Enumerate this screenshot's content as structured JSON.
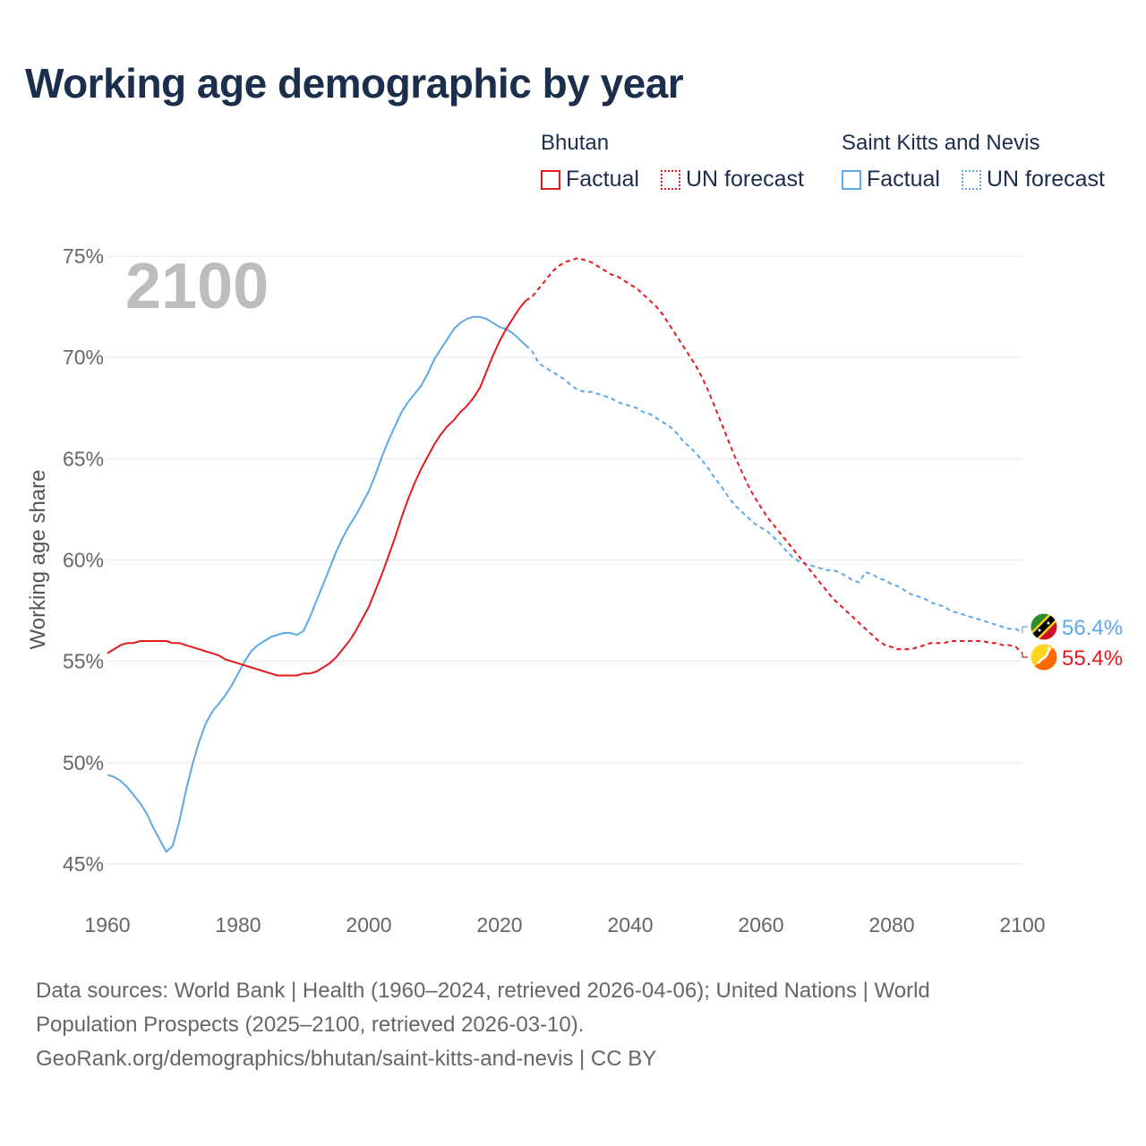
{
  "title": "Working age demographic by year",
  "legend": {
    "groups": [
      {
        "country": "Bhutan",
        "color": "#e31a1c",
        "factual_label": "Factual",
        "forecast_label": "UN forecast"
      },
      {
        "country": "Saint Kitts and Nevis",
        "color": "#5ea8e8",
        "factual_label": "Factual",
        "forecast_label": "UN forecast"
      }
    ]
  },
  "year_watermark": "2100",
  "footer": {
    "line1": "Data sources: World Bank | Health (1960–2024, retrieved 2026-04-06); United Nations | World",
    "line2": "Population Prospects (2025–2100, retrieved 2026-03-10).",
    "line3": "GeoRank.org/demographics/bhutan/saint-kitts-and-nevis | CC BY"
  },
  "chart_data": {
    "type": "line",
    "title": "Working age demographic by year",
    "xlabel": "",
    "ylabel": "Working age share",
    "xlim": [
      1960,
      2100
    ],
    "ylim": [
      45,
      75
    ],
    "x_ticks": [
      1960,
      1980,
      2000,
      2020,
      2040,
      2060,
      2080,
      2100
    ],
    "y_ticks": [
      45,
      50,
      55,
      60,
      65,
      70,
      75
    ],
    "y_tick_labels": [
      "45%",
      "50%",
      "55%",
      "60%",
      "65%",
      "70%",
      "75%"
    ],
    "grid": true,
    "factual_until": 2024,
    "series": [
      {
        "name": "Bhutan",
        "color": "#e31a1c",
        "end_label": "55.4%",
        "flag": "bhutan",
        "points": [
          [
            1960,
            55.4
          ],
          [
            1961,
            55.6
          ],
          [
            1962,
            55.8
          ],
          [
            1963,
            55.9
          ],
          [
            1964,
            55.9
          ],
          [
            1965,
            56.0
          ],
          [
            1966,
            56.0
          ],
          [
            1967,
            56.0
          ],
          [
            1968,
            56.0
          ],
          [
            1969,
            56.0
          ],
          [
            1970,
            55.9
          ],
          [
            1971,
            55.9
          ],
          [
            1972,
            55.8
          ],
          [
            1973,
            55.7
          ],
          [
            1974,
            55.6
          ],
          [
            1975,
            55.5
          ],
          [
            1976,
            55.4
          ],
          [
            1977,
            55.3
          ],
          [
            1978,
            55.1
          ],
          [
            1979,
            55.0
          ],
          [
            1980,
            54.9
          ],
          [
            1981,
            54.8
          ],
          [
            1982,
            54.7
          ],
          [
            1983,
            54.6
          ],
          [
            1984,
            54.5
          ],
          [
            1985,
            54.4
          ],
          [
            1986,
            54.3
          ],
          [
            1987,
            54.3
          ],
          [
            1988,
            54.3
          ],
          [
            1989,
            54.3
          ],
          [
            1990,
            54.4
          ],
          [
            1991,
            54.4
          ],
          [
            1992,
            54.5
          ],
          [
            1993,
            54.7
          ],
          [
            1994,
            54.9
          ],
          [
            1995,
            55.2
          ],
          [
            1996,
            55.6
          ],
          [
            1997,
            56.0
          ],
          [
            1998,
            56.5
          ],
          [
            1999,
            57.1
          ],
          [
            2000,
            57.7
          ],
          [
            2001,
            58.5
          ],
          [
            2002,
            59.3
          ],
          [
            2003,
            60.2
          ],
          [
            2004,
            61.1
          ],
          [
            2005,
            62.1
          ],
          [
            2006,
            63.0
          ],
          [
            2007,
            63.8
          ],
          [
            2008,
            64.5
          ],
          [
            2009,
            65.1
          ],
          [
            2010,
            65.7
          ],
          [
            2011,
            66.2
          ],
          [
            2012,
            66.6
          ],
          [
            2013,
            66.9
          ],
          [
            2014,
            67.3
          ],
          [
            2015,
            67.6
          ],
          [
            2016,
            68.0
          ],
          [
            2017,
            68.5
          ],
          [
            2018,
            69.3
          ],
          [
            2019,
            70.1
          ],
          [
            2020,
            70.8
          ],
          [
            2021,
            71.4
          ],
          [
            2022,
            71.9
          ],
          [
            2023,
            72.4
          ],
          [
            2024,
            72.8
          ],
          [
            2025,
            73.0
          ],
          [
            2026,
            73.4
          ],
          [
            2027,
            73.8
          ],
          [
            2028,
            74.2
          ],
          [
            2029,
            74.5
          ],
          [
            2030,
            74.7
          ],
          [
            2031,
            74.8
          ],
          [
            2032,
            74.9
          ],
          [
            2033,
            74.8
          ],
          [
            2034,
            74.7
          ],
          [
            2035,
            74.5
          ],
          [
            2036,
            74.3
          ],
          [
            2037,
            74.1
          ],
          [
            2038,
            74.0
          ],
          [
            2039,
            73.8
          ],
          [
            2040,
            73.6
          ],
          [
            2041,
            73.4
          ],
          [
            2042,
            73.1
          ],
          [
            2043,
            72.8
          ],
          [
            2044,
            72.5
          ],
          [
            2045,
            72.1
          ],
          [
            2046,
            71.6
          ],
          [
            2047,
            71.1
          ],
          [
            2048,
            70.6
          ],
          [
            2049,
            70.1
          ],
          [
            2050,
            69.6
          ],
          [
            2051,
            69.0
          ],
          [
            2052,
            68.3
          ],
          [
            2053,
            67.5
          ],
          [
            2054,
            66.7
          ],
          [
            2055,
            65.9
          ],
          [
            2056,
            65.1
          ],
          [
            2057,
            64.4
          ],
          [
            2058,
            63.7
          ],
          [
            2059,
            63.1
          ],
          [
            2060,
            62.6
          ],
          [
            2061,
            62.1
          ],
          [
            2062,
            61.7
          ],
          [
            2063,
            61.3
          ],
          [
            2064,
            60.9
          ],
          [
            2065,
            60.5
          ],
          [
            2066,
            60.1
          ],
          [
            2067,
            59.7
          ],
          [
            2068,
            59.3
          ],
          [
            2069,
            58.9
          ],
          [
            2070,
            58.5
          ],
          [
            2071,
            58.1
          ],
          [
            2072,
            57.8
          ],
          [
            2073,
            57.5
          ],
          [
            2074,
            57.2
          ],
          [
            2075,
            56.9
          ],
          [
            2076,
            56.6
          ],
          [
            2077,
            56.3
          ],
          [
            2078,
            56.0
          ],
          [
            2079,
            55.8
          ],
          [
            2080,
            55.7
          ],
          [
            2081,
            55.6
          ],
          [
            2082,
            55.6
          ],
          [
            2083,
            55.6
          ],
          [
            2084,
            55.7
          ],
          [
            2085,
            55.8
          ],
          [
            2086,
            55.9
          ],
          [
            2087,
            55.9
          ],
          [
            2088,
            55.9
          ],
          [
            2089,
            56.0
          ],
          [
            2090,
            56.0
          ],
          [
            2091,
            56.0
          ],
          [
            2092,
            56.0
          ],
          [
            2093,
            56.0
          ],
          [
            2094,
            56.0
          ],
          [
            2095,
            55.9
          ],
          [
            2096,
            55.9
          ],
          [
            2097,
            55.8
          ],
          [
            2098,
            55.8
          ],
          [
            2099,
            55.7
          ],
          [
            2100,
            55.4
          ]
        ]
      },
      {
        "name": "Saint Kitts and Nevis",
        "color": "#5ea8e8",
        "end_label": "56.4%",
        "flag": "saint-kitts-and-nevis",
        "points": [
          [
            1960,
            49.4
          ],
          [
            1961,
            49.3
          ],
          [
            1962,
            49.1
          ],
          [
            1963,
            48.8
          ],
          [
            1964,
            48.4
          ],
          [
            1965,
            48.0
          ],
          [
            1966,
            47.5
          ],
          [
            1967,
            46.8
          ],
          [
            1968,
            46.2
          ],
          [
            1969,
            45.6
          ],
          [
            1970,
            45.9
          ],
          [
            1971,
            47.1
          ],
          [
            1972,
            48.6
          ],
          [
            1973,
            49.9
          ],
          [
            1974,
            51.0
          ],
          [
            1975,
            51.9
          ],
          [
            1976,
            52.5
          ],
          [
            1977,
            52.9
          ],
          [
            1978,
            53.3
          ],
          [
            1979,
            53.8
          ],
          [
            1980,
            54.4
          ],
          [
            1981,
            55.0
          ],
          [
            1982,
            55.5
          ],
          [
            1983,
            55.8
          ],
          [
            1984,
            56.0
          ],
          [
            1985,
            56.2
          ],
          [
            1986,
            56.3
          ],
          [
            1987,
            56.4
          ],
          [
            1988,
            56.4
          ],
          [
            1989,
            56.3
          ],
          [
            1990,
            56.5
          ],
          [
            1991,
            57.2
          ],
          [
            1992,
            58.0
          ],
          [
            1993,
            58.8
          ],
          [
            1994,
            59.6
          ],
          [
            1995,
            60.4
          ],
          [
            1996,
            61.1
          ],
          [
            1997,
            61.7
          ],
          [
            1998,
            62.2
          ],
          [
            1999,
            62.8
          ],
          [
            2000,
            63.4
          ],
          [
            2001,
            64.2
          ],
          [
            2002,
            65.1
          ],
          [
            2003,
            65.9
          ],
          [
            2004,
            66.6
          ],
          [
            2005,
            67.3
          ],
          [
            2006,
            67.8
          ],
          [
            2007,
            68.2
          ],
          [
            2008,
            68.6
          ],
          [
            2009,
            69.2
          ],
          [
            2010,
            69.9
          ],
          [
            2011,
            70.4
          ],
          [
            2012,
            70.9
          ],
          [
            2013,
            71.4
          ],
          [
            2014,
            71.7
          ],
          [
            2015,
            71.9
          ],
          [
            2016,
            72.0
          ],
          [
            2017,
            72.0
          ],
          [
            2018,
            71.9
          ],
          [
            2019,
            71.7
          ],
          [
            2020,
            71.5
          ],
          [
            2021,
            71.4
          ],
          [
            2022,
            71.2
          ],
          [
            2023,
            70.9
          ],
          [
            2024,
            70.6
          ],
          [
            2025,
            70.3
          ],
          [
            2026,
            69.7
          ],
          [
            2027,
            69.5
          ],
          [
            2028,
            69.3
          ],
          [
            2029,
            69.1
          ],
          [
            2030,
            68.9
          ],
          [
            2031,
            68.6
          ],
          [
            2032,
            68.4
          ],
          [
            2033,
            68.3
          ],
          [
            2034,
            68.3
          ],
          [
            2035,
            68.2
          ],
          [
            2036,
            68.1
          ],
          [
            2037,
            68.0
          ],
          [
            2038,
            67.8
          ],
          [
            2039,
            67.7
          ],
          [
            2040,
            67.6
          ],
          [
            2041,
            67.5
          ],
          [
            2042,
            67.3
          ],
          [
            2043,
            67.2
          ],
          [
            2044,
            67.0
          ],
          [
            2045,
            66.8
          ],
          [
            2046,
            66.6
          ],
          [
            2047,
            66.3
          ],
          [
            2048,
            65.9
          ],
          [
            2049,
            65.6
          ],
          [
            2050,
            65.3
          ],
          [
            2051,
            64.9
          ],
          [
            2052,
            64.5
          ],
          [
            2053,
            64.0
          ],
          [
            2054,
            63.6
          ],
          [
            2055,
            63.1
          ],
          [
            2056,
            62.7
          ],
          [
            2057,
            62.4
          ],
          [
            2058,
            62.1
          ],
          [
            2059,
            61.8
          ],
          [
            2060,
            61.6
          ],
          [
            2061,
            61.4
          ],
          [
            2062,
            61.1
          ],
          [
            2063,
            60.8
          ],
          [
            2064,
            60.4
          ],
          [
            2065,
            60.1
          ],
          [
            2066,
            59.9
          ],
          [
            2067,
            59.8
          ],
          [
            2068,
            59.7
          ],
          [
            2069,
            59.6
          ],
          [
            2070,
            59.5
          ],
          [
            2071,
            59.5
          ],
          [
            2072,
            59.4
          ],
          [
            2073,
            59.2
          ],
          [
            2074,
            59.0
          ],
          [
            2075,
            58.9
          ],
          [
            2076,
            59.4
          ],
          [
            2077,
            59.3
          ],
          [
            2078,
            59.1
          ],
          [
            2079,
            59.0
          ],
          [
            2080,
            58.8
          ],
          [
            2081,
            58.7
          ],
          [
            2082,
            58.5
          ],
          [
            2083,
            58.3
          ],
          [
            2084,
            58.2
          ],
          [
            2085,
            58.1
          ],
          [
            2086,
            57.9
          ],
          [
            2087,
            57.8
          ],
          [
            2088,
            57.7
          ],
          [
            2089,
            57.5
          ],
          [
            2090,
            57.4
          ],
          [
            2091,
            57.3
          ],
          [
            2092,
            57.2
          ],
          [
            2093,
            57.1
          ],
          [
            2094,
            57.0
          ],
          [
            2095,
            56.9
          ],
          [
            2096,
            56.8
          ],
          [
            2097,
            56.7
          ],
          [
            2098,
            56.6
          ],
          [
            2099,
            56.6
          ],
          [
            2100,
            56.4
          ]
        ]
      }
    ]
  }
}
